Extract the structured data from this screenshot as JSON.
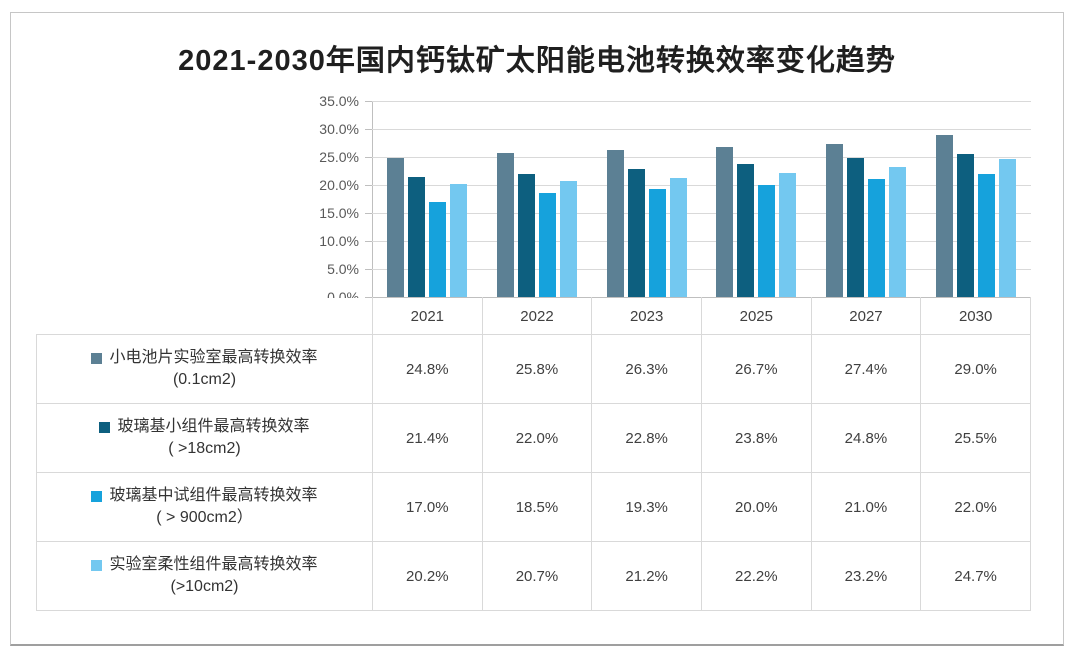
{
  "title": "2021-2030年国内钙钛矿太阳能电池转换效率变化趋势",
  "colors": {
    "grid": "#d9d9d9",
    "axis": "#bfbfbf",
    "table_border": "#d9d9d9",
    "tick_text": "#595959",
    "cell_text": "#404040",
    "title_text": "#1f1f1f"
  },
  "chart_data": {
    "type": "bar",
    "title": "2021-2030年国内钙钛矿太阳能电池转换效率变化趋势",
    "categories": [
      "2021",
      "2022",
      "2023",
      "2025",
      "2027",
      "2030"
    ],
    "series": [
      {
        "name": "小电池片实验室最高转换效率",
        "size_note": "(0.1cm2)",
        "color": "#5c8094",
        "values": [
          24.8,
          25.8,
          26.3,
          26.7,
          27.4,
          29.0
        ]
      },
      {
        "name": "玻璃基小组件最高转换效率",
        "size_note": "( >18cm2)",
        "color": "#0d5f7f",
        "values": [
          21.4,
          22.0,
          22.8,
          23.8,
          24.8,
          25.5
        ]
      },
      {
        "name": "玻璃基中试组件最高转换效率",
        "size_note": "( > 900cm2）",
        "color": "#16a2dc",
        "values": [
          17.0,
          18.5,
          19.3,
          20.0,
          21.0,
          22.0
        ]
      },
      {
        "name": "实验室柔性组件最高转换效率",
        "size_note": "(>10cm2)",
        "color": "#73c8f0",
        "values": [
          20.2,
          20.7,
          21.2,
          22.2,
          23.2,
          24.7
        ]
      }
    ],
    "xlabel": "",
    "ylabel": "",
    "ylim": [
      0,
      35
    ],
    "ytick_step": 5,
    "ytick_labels": [
      "35.0%",
      "30.0%",
      "25.0%",
      "20.0%",
      "15.0%",
      "10.0%",
      "5.0%",
      "0.0%"
    ],
    "value_suffix": "%",
    "grid": true,
    "legend_position": "table-left-column"
  }
}
